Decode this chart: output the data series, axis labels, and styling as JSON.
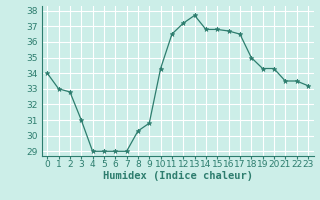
{
  "x": [
    0,
    1,
    2,
    3,
    4,
    5,
    6,
    7,
    8,
    9,
    10,
    11,
    12,
    13,
    14,
    15,
    16,
    17,
    18,
    19,
    20,
    21,
    22,
    23
  ],
  "y": [
    34.0,
    33.0,
    32.8,
    31.0,
    29.0,
    29.0,
    29.0,
    29.0,
    30.3,
    30.8,
    34.3,
    36.5,
    37.2,
    37.7,
    36.8,
    36.8,
    36.7,
    36.5,
    35.0,
    34.3,
    34.3,
    33.5,
    33.5,
    33.2
  ],
  "xlabel": "Humidex (Indice chaleur)",
  "ylim_min": 28.7,
  "ylim_max": 38.3,
  "xlim_min": -0.5,
  "xlim_max": 23.5,
  "yticks": [
    29,
    30,
    31,
    32,
    33,
    34,
    35,
    36,
    37,
    38
  ],
  "xticks": [
    0,
    1,
    2,
    3,
    4,
    5,
    6,
    7,
    8,
    9,
    10,
    11,
    12,
    13,
    14,
    15,
    16,
    17,
    18,
    19,
    20,
    21,
    22,
    23
  ],
  "line_color": "#2d7d6e",
  "marker": "*",
  "marker_size": 3.5,
  "bg_color": "#cceee8",
  "grid_color": "#ffffff",
  "tick_fontsize": 6.5,
  "xlabel_fontsize": 7.5,
  "xlabel_bold": true
}
